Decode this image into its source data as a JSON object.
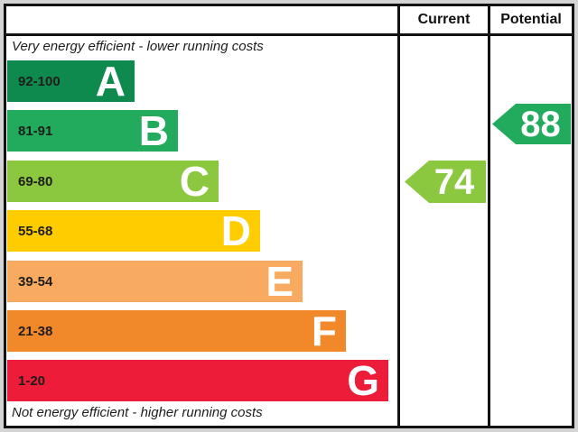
{
  "header": {
    "current_label": "Current",
    "potential_label": "Potential"
  },
  "captions": {
    "top": "Very energy efficient - lower running costs",
    "bottom": "Not energy efficient - higher running costs"
  },
  "bands": [
    {
      "letter": "A",
      "range": "92-100",
      "color": "#0f8a4e"
    },
    {
      "letter": "B",
      "range": "81-91",
      "color": "#22ab5c"
    },
    {
      "letter": "C",
      "range": "69-80",
      "color": "#8bc83f"
    },
    {
      "letter": "D",
      "range": "55-68",
      "color": "#ffcc00"
    },
    {
      "letter": "E",
      "range": "39-54",
      "color": "#f8ab60"
    },
    {
      "letter": "F",
      "range": "21-38",
      "color": "#f1882a"
    },
    {
      "letter": "G",
      "range": "1-20",
      "color": "#ed1c39"
    }
  ],
  "ratings": {
    "current": {
      "value": "74",
      "band": "C",
      "color": "#8bc83f"
    },
    "potential": {
      "value": "88",
      "band": "B",
      "color": "#22ab5c"
    }
  },
  "chart_data": {
    "type": "bar",
    "categories": [
      "A",
      "B",
      "C",
      "D",
      "E",
      "F",
      "G"
    ],
    "ranges": [
      "92-100",
      "81-91",
      "69-80",
      "55-68",
      "39-54",
      "21-38",
      "1-20"
    ],
    "colors": [
      "#0f8a4e",
      "#22ab5c",
      "#8bc83f",
      "#ffcc00",
      "#f8ab60",
      "#f1882a",
      "#ed1c39"
    ],
    "column_headers": [
      "Current",
      "Potential"
    ],
    "current_rating": 74,
    "current_band": "C",
    "potential_rating": 88,
    "potential_band": "B",
    "top_caption": "Very energy efficient - lower running costs",
    "bottom_caption": "Not energy efficient - higher running costs",
    "legend_position": "none",
    "grid": false
  }
}
